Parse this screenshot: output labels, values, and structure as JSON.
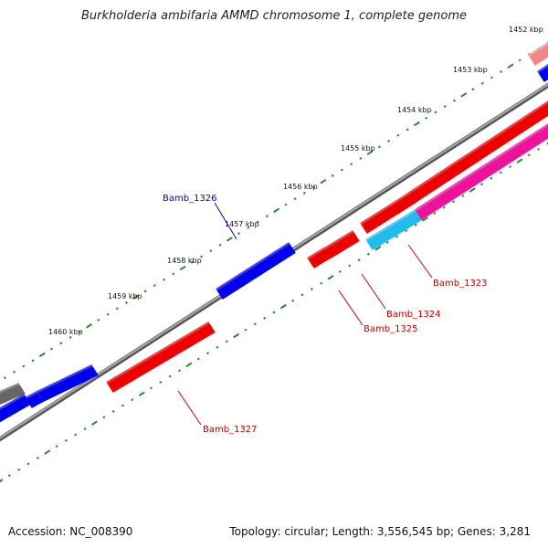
{
  "title": "Burkholderia ambifaria AMMD chromosome 1, complete genome",
  "footer": {
    "accession": "Accession: NC_008390",
    "topology": "Topology: circular; Length: 3,556,545 bp; Genes: 3,281"
  },
  "ticks": [
    {
      "label": "1452 kbp"
    },
    {
      "label": "1453 kbp"
    },
    {
      "label": "1454 kbp"
    },
    {
      "label": "1455 kbp"
    },
    {
      "label": "1456 kbp"
    },
    {
      "label": "1457 kbp"
    },
    {
      "label": "1458 kbp"
    },
    {
      "label": "1459 kbp"
    },
    {
      "label": "1460 kbp"
    }
  ],
  "gene_labels": [
    {
      "name": "Bamb_1326",
      "color": "#0000cc"
    },
    {
      "name": "Bamb_1323",
      "color": "#cc0000"
    },
    {
      "name": "Bamb_1324",
      "color": "#cc0000"
    },
    {
      "name": "Bamb_1325",
      "color": "#cc0000"
    },
    {
      "name": "Bamb_1327",
      "color": "#cc0000"
    }
  ],
  "colors": {
    "forward_gene": "#0000ee",
    "reverse_gene": "#ee0000",
    "magenta_gene": "#ee1199",
    "cyan_gene": "#22bbee",
    "pink_gene": "#ee8888",
    "gray_gene": "#666666",
    "backbone": "#888888",
    "tick": "#2a8a2a"
  }
}
